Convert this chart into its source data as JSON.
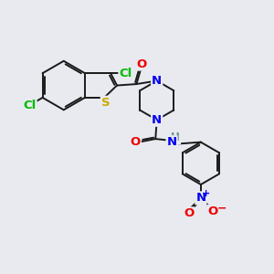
{
  "bg_color": "#e8eaf0",
  "bond_color": "#1a1a1a",
  "bond_width": 1.4,
  "atom_colors": {
    "Cl": "#00bb00",
    "S": "#ccaa00",
    "N": "#0000ee",
    "O": "#ee0000",
    "N_nitro": "#0000ee",
    "O_nitro": "#ee0000",
    "H": "#6a8a8a"
  },
  "fig_size": [
    3.0,
    3.0
  ],
  "dpi": 100
}
